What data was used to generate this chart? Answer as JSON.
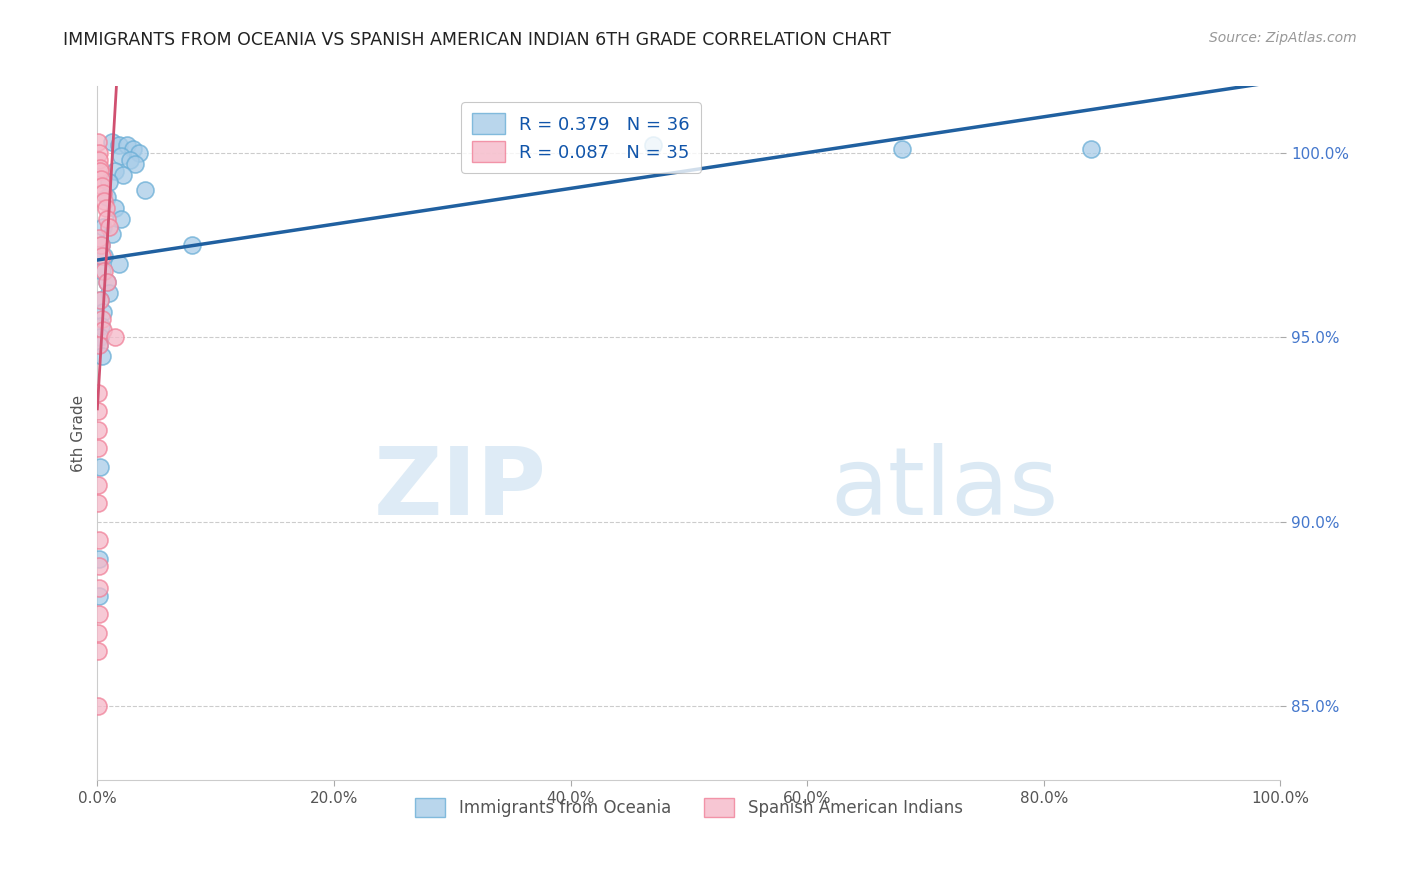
{
  "title": "IMMIGRANTS FROM OCEANIA VS SPANISH AMERICAN INDIAN 6TH GRADE CORRELATION CHART",
  "source": "Source: ZipAtlas.com",
  "ylabel": "6th Grade",
  "legend_label1": "R = 0.379   N = 36",
  "legend_label2": "R = 0.087   N = 35",
  "legend_series1": "Immigrants from Oceania",
  "legend_series2": "Spanish American Indians",
  "watermark_zip": "ZIP",
  "watermark_atlas": "atlas",
  "xmin": 0.0,
  "xmax": 100.0,
  "ymin": 83.0,
  "ymax": 101.8,
  "yticks": [
    85.0,
    90.0,
    95.0,
    100.0
  ],
  "ytick_labels": [
    "85.0%",
    "90.0%",
    "95.0%",
    "100.0%"
  ],
  "xticks": [
    0.0,
    20.0,
    40.0,
    60.0,
    80.0,
    100.0
  ],
  "xtick_labels": [
    "0.0%",
    "20.0%",
    "40.0%",
    "60.0%",
    "80.0%",
    "100.0%"
  ],
  "blue_color": "#a8cce8",
  "pink_color": "#f5b8c8",
  "blue_edge_color": "#6aaed6",
  "pink_edge_color": "#f08098",
  "blue_line_color": "#2060a0",
  "pink_line_color": "#d05070",
  "pink_dash_color": "#e898a8",
  "blue_scatter": [
    [
      1.2,
      100.3
    ],
    [
      1.8,
      100.2
    ],
    [
      2.5,
      100.2
    ],
    [
      3.0,
      100.1
    ],
    [
      3.5,
      100.0
    ],
    [
      2.0,
      99.9
    ],
    [
      2.8,
      99.8
    ],
    [
      3.2,
      99.7
    ],
    [
      1.5,
      99.5
    ],
    [
      2.2,
      99.4
    ],
    [
      1.0,
      99.2
    ],
    [
      4.0,
      99.0
    ],
    [
      0.8,
      98.8
    ],
    [
      1.5,
      98.5
    ],
    [
      2.0,
      98.2
    ],
    [
      0.5,
      98.0
    ],
    [
      1.2,
      97.8
    ],
    [
      0.3,
      97.5
    ],
    [
      0.6,
      97.2
    ],
    [
      1.8,
      97.0
    ],
    [
      0.4,
      96.8
    ],
    [
      0.8,
      96.5
    ],
    [
      1.0,
      96.2
    ],
    [
      0.2,
      96.0
    ],
    [
      0.5,
      95.7
    ],
    [
      0.3,
      95.3
    ],
    [
      0.2,
      95.0
    ],
    [
      0.1,
      94.8
    ],
    [
      0.4,
      94.5
    ],
    [
      8.0,
      97.5
    ],
    [
      47.0,
      100.2
    ],
    [
      68.0,
      100.1
    ],
    [
      84.0,
      100.1
    ],
    [
      0.2,
      91.5
    ],
    [
      0.15,
      89.0
    ],
    [
      0.1,
      88.0
    ]
  ],
  "pink_scatter": [
    [
      0.05,
      100.3
    ],
    [
      0.1,
      100.0
    ],
    [
      0.15,
      99.8
    ],
    [
      0.2,
      99.6
    ],
    [
      0.25,
      99.5
    ],
    [
      0.3,
      99.3
    ],
    [
      0.4,
      99.1
    ],
    [
      0.5,
      98.9
    ],
    [
      0.6,
      98.7
    ],
    [
      0.7,
      98.5
    ],
    [
      0.8,
      98.2
    ],
    [
      1.0,
      98.0
    ],
    [
      0.15,
      97.7
    ],
    [
      0.3,
      97.5
    ],
    [
      0.4,
      97.2
    ],
    [
      0.6,
      96.8
    ],
    [
      0.8,
      96.5
    ],
    [
      0.2,
      96.0
    ],
    [
      0.4,
      95.5
    ],
    [
      0.5,
      95.2
    ],
    [
      0.1,
      94.8
    ],
    [
      1.5,
      95.0
    ],
    [
      0.08,
      93.5
    ],
    [
      0.08,
      93.0
    ],
    [
      0.05,
      92.5
    ],
    [
      0.05,
      92.0
    ],
    [
      0.05,
      91.0
    ],
    [
      0.08,
      90.5
    ],
    [
      0.12,
      89.5
    ],
    [
      0.15,
      88.8
    ],
    [
      0.12,
      88.2
    ],
    [
      0.12,
      87.5
    ],
    [
      0.05,
      87.0
    ],
    [
      0.05,
      86.5
    ],
    [
      0.05,
      85.0
    ]
  ],
  "background_color": "#ffffff",
  "grid_color": "#cccccc",
  "title_color": "#222222",
  "axis_label_color": "#555555",
  "tick_label_color_y": "#4477cc",
  "tick_label_color_x": "#555555"
}
